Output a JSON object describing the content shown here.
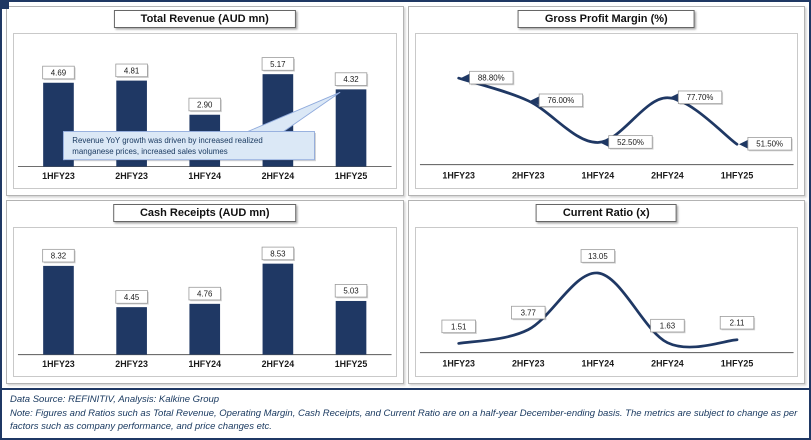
{
  "colors": {
    "navy": "#1F3864",
    "bar": "#1F3864",
    "line": "#1F3864",
    "axis": "#595959",
    "label_border": "#9a9a9a",
    "annotation_bg": "#dbe8f6",
    "annotation_border": "#8faadc"
  },
  "chart_data": [
    {
      "id": "total-revenue",
      "type": "bar",
      "title": "Total Revenue (AUD mn)",
      "categories": [
        "1HFY23",
        "2HFY23",
        "1HFY24",
        "2HFY24",
        "1HFY25"
      ],
      "values": [
        4.69,
        4.81,
        2.9,
        5.17,
        4.32
      ],
      "labels": [
        "4.69",
        "4.81",
        "2.90",
        "5.17",
        "4.32"
      ],
      "ylim": [
        0,
        6
      ],
      "color": "#1F3864",
      "annotation": {
        "lines": [
          "Revenue YoY growth was driven by increased realized",
          "manganese prices, increased sales volumes"
        ],
        "points_to": 4
      }
    },
    {
      "id": "gross-profit-margin",
      "type": "line",
      "title": "Gross Profit Margin (%)",
      "categories": [
        "1HFY23",
        "2HFY23",
        "1HFY24",
        "2HFY24",
        "1HFY25"
      ],
      "values": [
        88.8,
        76.0,
        52.5,
        77.7,
        51.5
      ],
      "labels": [
        "88.80%",
        "76.00%",
        "52.50%",
        "77.70%",
        "51.50%"
      ],
      "ylim": [
        40,
        95
      ],
      "label_position": "right",
      "color": "#1F3864"
    },
    {
      "id": "cash-receipts",
      "type": "bar",
      "title": "Cash Receipts (AUD mn)",
      "categories": [
        "1HFY23",
        "2HFY23",
        "1HFY24",
        "2HFY24",
        "1HFY25"
      ],
      "values": [
        8.32,
        4.45,
        4.76,
        8.53,
        5.03
      ],
      "labels": [
        "8.32",
        "4.45",
        "4.76",
        "8.53",
        "5.03"
      ],
      "ylim": [
        0,
        9.5
      ],
      "color": "#1F3864"
    },
    {
      "id": "current-ratio",
      "type": "line",
      "title": "Current Ratio (x)",
      "categories": [
        "1HFY23",
        "2HFY23",
        "1HFY24",
        "2HFY24",
        "1HFY25"
      ],
      "values": [
        1.51,
        3.77,
        13.05,
        1.63,
        2.11
      ],
      "labels": [
        "1.51",
        "3.77",
        "13.05",
        "1.63",
        "2.11"
      ],
      "ylim": [
        0,
        15
      ],
      "label_position": "above",
      "color": "#1F3864"
    }
  ],
  "footer": {
    "source": "Data Source: REFINITIV, Analysis: Kalkine Group",
    "note": "Note: Figures and Ratios such as Total Revenue, Operating Margin, Cash Receipts, and Current Ratio are on a half-year December-ending basis. The metrics are subject to change as per factors such as company performance, and price changes etc."
  }
}
